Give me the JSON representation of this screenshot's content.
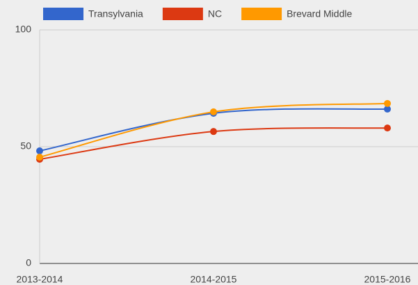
{
  "chart_data": {
    "type": "line",
    "categories": [
      "2013-2014",
      "2014-2015",
      "2015-2016"
    ],
    "series": [
      {
        "name": "Transylvania",
        "color": "#3366cc",
        "values": [
          48.2,
          64.3,
          66.1
        ]
      },
      {
        "name": "NC",
        "color": "#dc3912",
        "values": [
          44.6,
          56.5,
          58
        ]
      },
      {
        "name": "Brevard Middle",
        "color": "#ff9900",
        "values": [
          45.5,
          64.9,
          68.5
        ]
      }
    ],
    "ylim": [
      0,
      100
    ],
    "yticks": [
      0,
      50,
      100
    ],
    "grid": true,
    "legend": "top",
    "smooth": true
  }
}
